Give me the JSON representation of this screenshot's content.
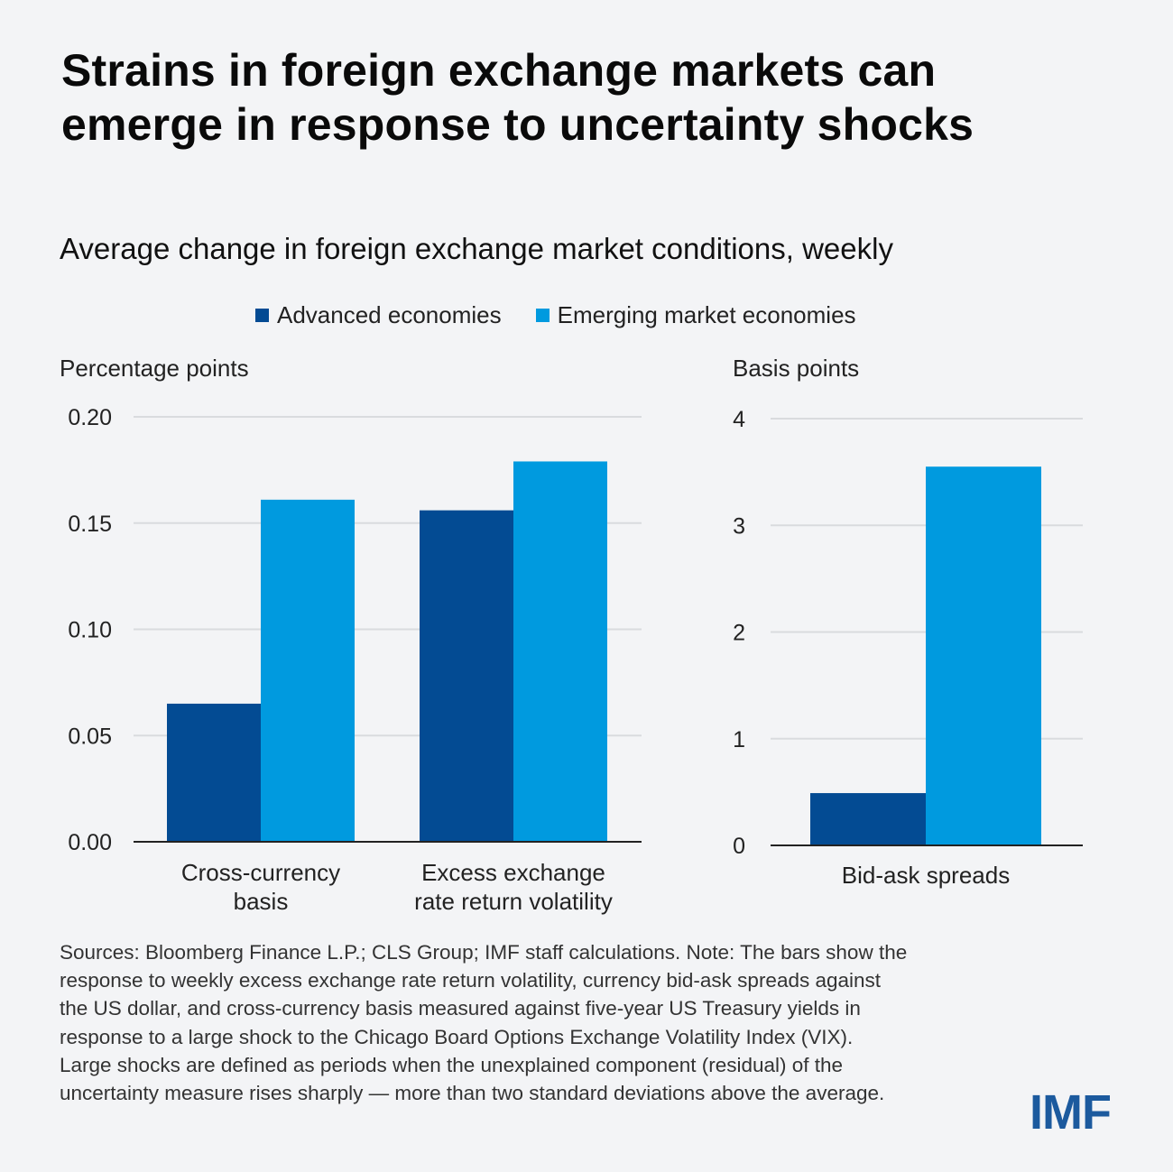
{
  "title_line1": "Strains in foreign exchange markets can",
  "title_line2": "emerge in response to uncertainty shocks",
  "subtitle": "Average change in foreign exchange market conditions, weekly",
  "legend": [
    {
      "label": "Advanced economies",
      "color": "#034b93"
    },
    {
      "label": "Emerging market economies",
      "color": "#009adf"
    }
  ],
  "chart_data": [
    {
      "type": "bar",
      "ylabel": "Percentage points",
      "ylim": [
        0,
        0.2
      ],
      "yticks": [
        "0.00",
        "0.05",
        "0.10",
        "0.15",
        "0.20"
      ],
      "categories": [
        [
          "Cross-currency",
          "basis"
        ],
        [
          "Excess exchange",
          "rate return volatility"
        ]
      ],
      "series": [
        {
          "name": "Advanced economies",
          "values": [
            0.065,
            0.156
          ]
        },
        {
          "name": "Emerging market economies",
          "values": [
            0.161,
            0.179
          ]
        }
      ],
      "grid": true
    },
    {
      "type": "bar",
      "ylabel": "Basis points",
      "ylim": [
        0,
        4
      ],
      "yticks": [
        "0",
        "1",
        "2",
        "3",
        "4"
      ],
      "categories": [
        [
          "Bid-ask spreads"
        ]
      ],
      "series": [
        {
          "name": "Advanced economies",
          "values": [
            0.49
          ]
        },
        {
          "name": "Emerging market economies",
          "values": [
            3.55
          ]
        }
      ],
      "grid": true
    }
  ],
  "note_lines": [
    "Sources: Bloomberg Finance L.P.; CLS Group; IMF staff calculations. Note: The bars show the",
    "response to weekly excess exchange rate return volatility, currency bid-ask spreads against",
    "the US dollar, and cross-currency basis measured against five-year US Treasury yields in",
    "response to a large shock to the Chicago Board Options Exchange Volatility Index (VIX).",
    "Large shocks are defined as periods when the unexplained component (residual) of the",
    "uncertainty measure rises sharply — more than two standard deviations above the average."
  ],
  "logo_text": "IMF"
}
